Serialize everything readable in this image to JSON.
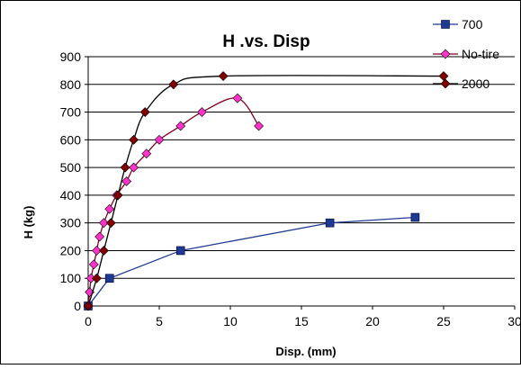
{
  "chart_data": {
    "type": "line",
    "title": "H .vs. Disp",
    "xlabel": "Disp. (mm)",
    "ylabel": "H (kg)",
    "xlim": [
      0,
      30
    ],
    "ylim": [
      0,
      900
    ],
    "xticks": [
      "0",
      "5",
      "10",
      "15",
      "20",
      "25",
      "30"
    ],
    "yticks": [
      "0",
      "100",
      "200",
      "300",
      "400",
      "500",
      "600",
      "700",
      "800",
      "900"
    ],
    "grid": {
      "horizontal": true,
      "vertical": false
    },
    "legend_position": "top-right",
    "series": [
      {
        "name": "700",
        "color": "#1f3a93",
        "marker": "square",
        "smooth": false,
        "x": [
          0,
          1.5,
          6.5,
          17,
          23
        ],
        "y": [
          0,
          100,
          200,
          300,
          320
        ]
      },
      {
        "name": "No-tire",
        "color": "#ff33cc",
        "line_color": "#800020",
        "marker": "diamond",
        "smooth": true,
        "x": [
          0,
          0.1,
          0.2,
          0.4,
          0.6,
          0.8,
          1.1,
          1.5,
          2.0,
          2.7,
          3.2,
          4.1,
          5.0,
          6.5,
          8.0,
          10.5,
          12.0
        ],
        "y": [
          0,
          50,
          100,
          150,
          200,
          250,
          300,
          350,
          400,
          450,
          500,
          550,
          600,
          650,
          700,
          750,
          650
        ]
      },
      {
        "name": "2000",
        "color": "#800000",
        "line_color": "#000000",
        "marker": "diamond",
        "smooth": true,
        "x": [
          0,
          0.6,
          1.1,
          1.6,
          2.1,
          2.6,
          3.2,
          4.0,
          6.0,
          9.5,
          25.0
        ],
        "y": [
          0,
          100,
          200,
          300,
          400,
          500,
          600,
          700,
          800,
          830,
          830
        ]
      }
    ]
  }
}
